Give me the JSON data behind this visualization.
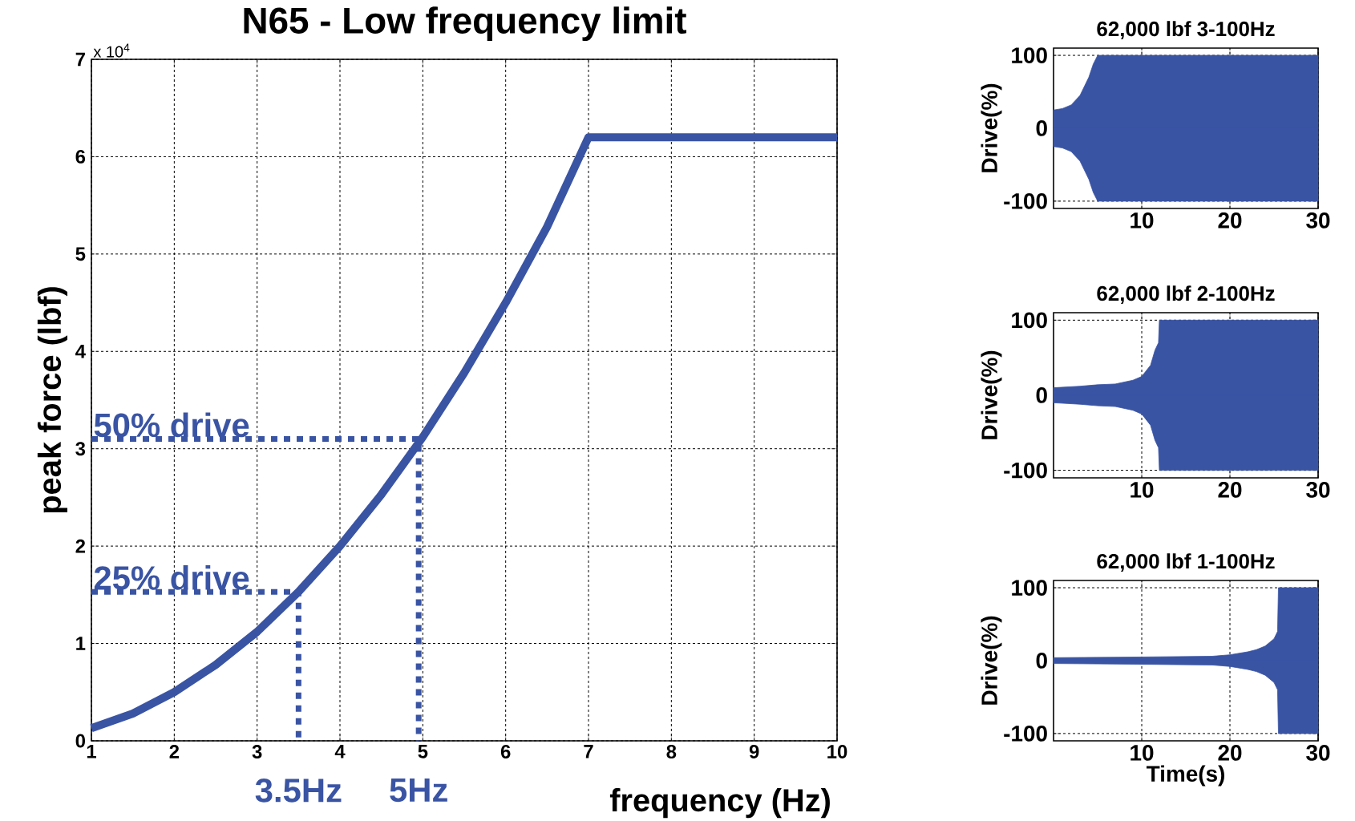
{
  "chart_data": [
    {
      "type": "line",
      "title": "N65 - Low frequency limit",
      "xlabel": "frequency (Hz)",
      "ylabel": "peak force (lbf)",
      "xlim": [
        1,
        10
      ],
      "xticks": [
        1,
        2,
        3,
        4,
        5,
        6,
        7,
        8,
        9,
        10
      ],
      "ylim": [
        0,
        7
      ],
      "yticks": [
        0,
        1,
        2,
        3,
        4,
        5,
        6,
        7
      ],
      "grid": true,
      "series": [
        {
          "color": "#3a54a4",
          "x": [
            1,
            1.5,
            2,
            2.5,
            3,
            3.5,
            4,
            4.5,
            5,
            5.5,
            6,
            6.5,
            7,
            8,
            9,
            10
          ],
          "values": [
            0.13,
            0.28,
            0.5,
            0.78,
            1.12,
            1.53,
            2.0,
            2.53,
            3.12,
            3.78,
            4.5,
            5.28,
            6.2,
            6.2,
            6.2,
            6.2
          ]
        },
        {
          "name": "25% drive",
          "color": "#3a54a4",
          "line_style": "dotted",
          "x": [
            1,
            3.5,
            3.5
          ],
          "values": [
            1.53,
            1.53,
            0
          ]
        },
        {
          "name": "50% drive",
          "color": "#3a54a4",
          "line_style": "dotted",
          "x": [
            1,
            4.95,
            4.95
          ],
          "values": [
            3.1,
            3.1,
            0
          ]
        }
      ],
      "annotations": [
        "x 10$^{4}$",
        "3.5Hz",
        "5Hz"
      ]
    },
    {
      "type": "area",
      "title": "62,000 lbf  3-100Hz",
      "ylabel": "Drive(%)",
      "xlim": [
        0,
        30
      ],
      "xticks": [
        10,
        20,
        30
      ],
      "ylim": [
        -110,
        110
      ],
      "yticks": [
        -100,
        0,
        100
      ],
      "grid": true,
      "series": [
        {
          "color": "#3a54a4",
          "x": [
            0,
            1,
            2,
            3,
            4,
            4.5,
            5,
            30
          ],
          "values": [
            25,
            27,
            32,
            45,
            70,
            88,
            100,
            100
          ]
        },
        {
          "color": "#3a54a4",
          "x": [
            0,
            1,
            2,
            3,
            4,
            4.5,
            5,
            30
          ],
          "values": [
            -25,
            -27,
            -32,
            -45,
            -70,
            -88,
            -100,
            -100
          ]
        }
      ]
    },
    {
      "type": "area",
      "title": "62,000 lbf  2-100Hz",
      "ylabel": "Drive(%)",
      "xlim": [
        0,
        30
      ],
      "xticks": [
        10,
        20,
        30
      ],
      "ylim": [
        -110,
        110
      ],
      "yticks": [
        -100,
        0,
        100
      ],
      "grid": true,
      "series": [
        {
          "color": "#3a54a4",
          "x": [
            0,
            3,
            5,
            7,
            9,
            10,
            11,
            11.5,
            11.9,
            12,
            30
          ],
          "values": [
            10,
            12,
            14,
            15,
            20,
            25,
            40,
            60,
            70,
            100,
            100
          ]
        },
        {
          "color": "#3a54a4",
          "x": [
            0,
            3,
            5,
            7,
            9,
            10,
            11,
            11.5,
            11.9,
            12,
            30
          ],
          "values": [
            -10,
            -12,
            -14,
            -15,
            -20,
            -25,
            -40,
            -60,
            -70,
            -100,
            -100
          ]
        }
      ]
    },
    {
      "type": "area",
      "title": "62,000 lbf  1-100Hz",
      "xlabel": "Time(s)",
      "ylabel": "Drive(%)",
      "xlim": [
        0,
        30
      ],
      "xticks": [
        10,
        20,
        30
      ],
      "ylim": [
        -110,
        110
      ],
      "yticks": [
        -100,
        0,
        100
      ],
      "grid": true,
      "series": [
        {
          "color": "#3a54a4",
          "x": [
            0,
            10,
            18,
            20,
            22,
            23,
            24,
            25,
            25.4,
            25.5,
            30
          ],
          "values": [
            4,
            5,
            6,
            8,
            12,
            15,
            20,
            30,
            40,
            100,
            100
          ]
        },
        {
          "color": "#3a54a4",
          "x": [
            0,
            10,
            18,
            20,
            22,
            23,
            24,
            25,
            25.4,
            25.5,
            30
          ],
          "values": [
            -4,
            -5,
            -6,
            -8,
            -12,
            -15,
            -20,
            -30,
            -40,
            -100,
            -100
          ]
        }
      ]
    }
  ]
}
